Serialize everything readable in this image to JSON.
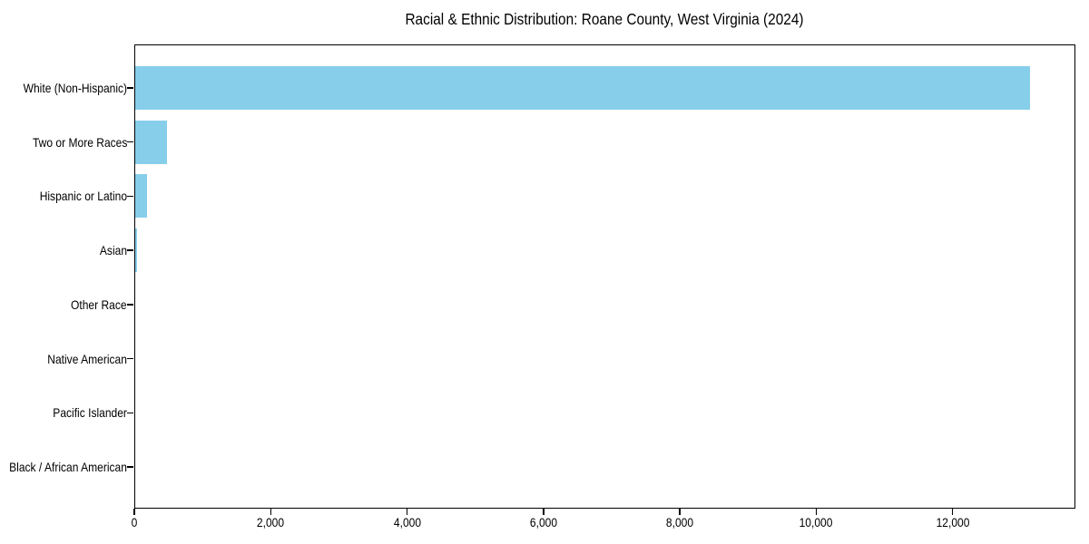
{
  "chart_data": {
    "type": "bar",
    "orientation": "horizontal",
    "title": "Racial & Ethnic Distribution: Roane County, West Virginia (2024)",
    "categories": [
      "White (Non-Hispanic)",
      "Two or More Races",
      "Hispanic or Latino",
      "Asian",
      "Other Race",
      "Native American",
      "Pacific Islander",
      "Black / African American"
    ],
    "values": [
      13140,
      480,
      180,
      45,
      15,
      8,
      4,
      2
    ],
    "bar_color": "#87CEEB",
    "frame_color": "#000000",
    "background_color": "#ffffff",
    "xlabel": "",
    "ylabel": "",
    "xlim": [
      0,
      13800
    ],
    "xticks": [
      0,
      2000,
      4000,
      6000,
      8000,
      10000,
      12000
    ],
    "xtick_labels": [
      "0",
      "2,000",
      "4,000",
      "6,000",
      "8,000",
      "10,000",
      "12,000"
    ],
    "grid": false,
    "legend": null
  }
}
